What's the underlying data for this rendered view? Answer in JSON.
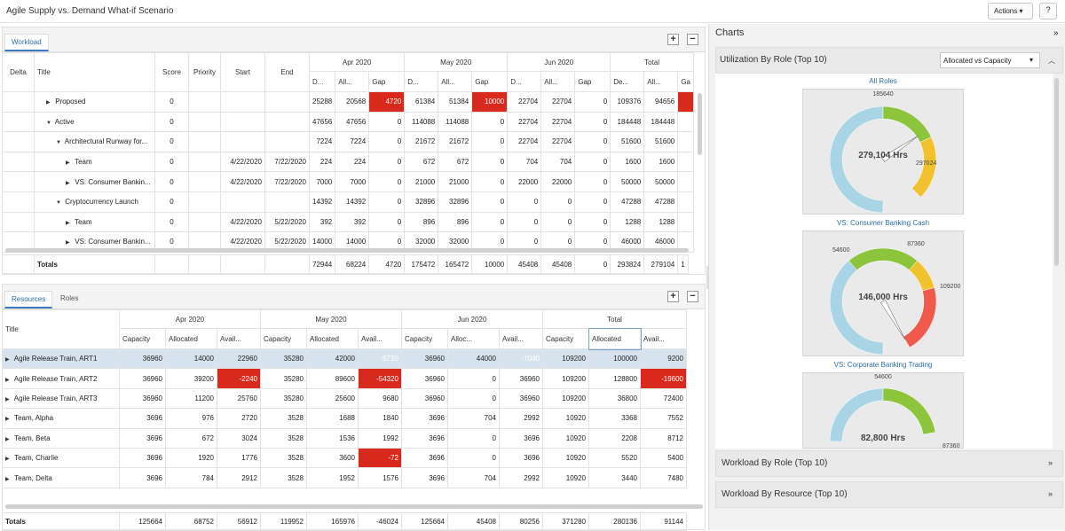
{
  "app": {
    "title": "Agile Supply vs. Demand What-if Scenario",
    "actions_label": "Actions",
    "help_icon": "question-icon"
  },
  "workload": {
    "tab": "Workload",
    "group_headers": [
      "Apr 2020",
      "May 2020",
      "Jun 2020",
      "Total"
    ],
    "columns": [
      "Delta",
      "Title",
      "Score",
      "Priority",
      "Start",
      "End"
    ],
    "sub_columns": [
      "D...",
      "All...",
      "Gap",
      "D...",
      "All...",
      "Gap",
      "D...",
      "All...",
      "Gap",
      "De...",
      "All...",
      "Ga"
    ],
    "rows": [
      {
        "title": "Proposed",
        "indent": 1,
        "caret": "▶",
        "score": "0",
        "start": "",
        "end": "",
        "v": [
          "25288",
          "20568",
          "4720",
          "61384",
          "51384",
          "10000",
          "22704",
          "22704",
          "0",
          "109376",
          "94656",
          ""
        ],
        "neg": [
          2,
          5,
          11
        ]
      },
      {
        "title": "Active",
        "indent": 1,
        "caret": "▼",
        "score": "0",
        "start": "",
        "end": "",
        "v": [
          "47656",
          "47656",
          "0",
          "114088",
          "114088",
          "0",
          "22704",
          "22704",
          "0",
          "184448",
          "184448",
          ""
        ],
        "neg": []
      },
      {
        "title": "Architectural Runway for...",
        "indent": 2,
        "caret": "▼",
        "score": "0",
        "start": "",
        "end": "",
        "v": [
          "7224",
          "7224",
          "0",
          "21672",
          "21672",
          "0",
          "22704",
          "22704",
          "0",
          "51600",
          "51600",
          ""
        ],
        "neg": []
      },
      {
        "title": "Team",
        "indent": 3,
        "caret": "▶",
        "score": "0",
        "start": "4/22/2020",
        "end": "7/22/2020",
        "v": [
          "224",
          "224",
          "0",
          "672",
          "672",
          "0",
          "704",
          "704",
          "0",
          "1600",
          "1600",
          ""
        ],
        "neg": []
      },
      {
        "title": "VS: Consumer Bankin...",
        "indent": 3,
        "caret": "▶",
        "score": "0",
        "start": "4/22/2020",
        "end": "7/22/2020",
        "v": [
          "7000",
          "7000",
          "0",
          "21000",
          "21000",
          "0",
          "22000",
          "22000",
          "0",
          "50000",
          "50000",
          ""
        ],
        "neg": []
      },
      {
        "title": "Cryptocurrency Launch",
        "indent": 2,
        "caret": "▼",
        "score": "0",
        "start": "",
        "end": "",
        "v": [
          "14392",
          "14392",
          "0",
          "32896",
          "32896",
          "0",
          "0",
          "0",
          "0",
          "47288",
          "47288",
          ""
        ],
        "neg": []
      },
      {
        "title": "Team",
        "indent": 3,
        "caret": "▶",
        "score": "0",
        "start": "4/22/2020",
        "end": "5/22/2020",
        "v": [
          "392",
          "392",
          "0",
          "896",
          "896",
          "0",
          "0",
          "0",
          "0",
          "1288",
          "1288",
          ""
        ],
        "neg": []
      },
      {
        "title": "VS: Consumer Bankin...",
        "indent": 3,
        "caret": "▶",
        "score": "0",
        "start": "4/22/2020",
        "end": "5/22/2020",
        "v": [
          "14000",
          "14000",
          "0",
          "32000",
          "32000",
          "0",
          "0",
          "0",
          "0",
          "46000",
          "46000",
          ""
        ],
        "neg": []
      }
    ],
    "totals": {
      "label": "Totals",
      "v": [
        "72944",
        "68224",
        "4720",
        "175472",
        "165472",
        "10000",
        "45408",
        "45408",
        "0",
        "293824",
        "279104",
        "1"
      ]
    }
  },
  "resources": {
    "tabs": [
      "Resources",
      "Roles"
    ],
    "group_headers": [
      "Apr 2020",
      "May 2020",
      "Jun 2020",
      "Total"
    ],
    "title_header": "Title",
    "sub_columns": [
      "Capacity",
      "Allocated",
      "Avail...",
      "Capacity",
      "Allocated",
      "Avail...",
      "Capacity",
      "Alloc...",
      "Avail...",
      "Capacity",
      "Allocated",
      "Avail..."
    ],
    "rows": [
      {
        "title": "Agile Release Train, ART1",
        "v": [
          "36960",
          "14000",
          "22960",
          "35280",
          "42000",
          "-6720",
          "36960",
          "44000",
          "-7040",
          "109200",
          "100000",
          "9200"
        ],
        "neg": [
          5,
          8
        ],
        "selected": true
      },
      {
        "title": "Agile Release Train, ART2",
        "v": [
          "36960",
          "39200",
          "-2240",
          "35280",
          "89600",
          "-54320",
          "36960",
          "0",
          "36960",
          "109200",
          "128800",
          "-19600"
        ],
        "neg": [
          2,
          5,
          11
        ]
      },
      {
        "title": "Agile Release Train, ART3",
        "v": [
          "36960",
          "11200",
          "25760",
          "35280",
          "25600",
          "9680",
          "36960",
          "0",
          "36960",
          "109200",
          "36800",
          "72400"
        ],
        "neg": []
      },
      {
        "title": "Team, Alpha",
        "v": [
          "3696",
          "976",
          "2720",
          "3528",
          "1688",
          "1840",
          "3696",
          "704",
          "2992",
          "10920",
          "3368",
          "7552"
        ],
        "neg": []
      },
      {
        "title": "Team, Beta",
        "v": [
          "3696",
          "672",
          "3024",
          "3528",
          "1536",
          "1992",
          "3696",
          "0",
          "3696",
          "10920",
          "2208",
          "8712"
        ],
        "neg": []
      },
      {
        "title": "Team, Charlie",
        "v": [
          "3696",
          "1920",
          "1776",
          "3528",
          "3600",
          "-72",
          "3696",
          "0",
          "3696",
          "10920",
          "5520",
          "5400"
        ],
        "neg": [
          5
        ]
      },
      {
        "title": "Team, Delta",
        "v": [
          "3696",
          "784",
          "2912",
          "3528",
          "1952",
          "1576",
          "3696",
          "704",
          "2992",
          "10920",
          "3440",
          "7480"
        ],
        "neg": []
      }
    ],
    "totals": {
      "label": "Totals",
      "v": [
        "125664",
        "68752",
        "56912",
        "119952",
        "165976",
        "-46024",
        "125664",
        "45408",
        "80256",
        "371280",
        "280136",
        "91144"
      ]
    }
  },
  "charts": {
    "header": "Charts",
    "utilization_title": "Utilization By Role (Top 10)",
    "dropdown_value": "Allocated vs Capacity",
    "gauges": [
      {
        "title": "All Roles",
        "center": "279,104 Hrs",
        "top": "185640",
        "right": "297024",
        "left": ""
      },
      {
        "title": "VS: Consumer Banking Cash",
        "center": "146,000 Hrs",
        "top": "87360",
        "right": "109200",
        "left": "54600"
      },
      {
        "title": "VS: Corporate Banking Trading",
        "center": "82,800 Hrs",
        "top": "54600",
        "right": "87360",
        "left": ""
      }
    ],
    "workload_by_role": "Workload By Role (Top 10)",
    "workload_by_resource": "Workload By Resource (Top 10)",
    "colors": {
      "blue": "#a8d4e6",
      "green": "#8cc43c",
      "yellow": "#f2c12e",
      "red": "#f05a4a",
      "neg": "#d9291c",
      "accent": "#2e6da4"
    }
  }
}
